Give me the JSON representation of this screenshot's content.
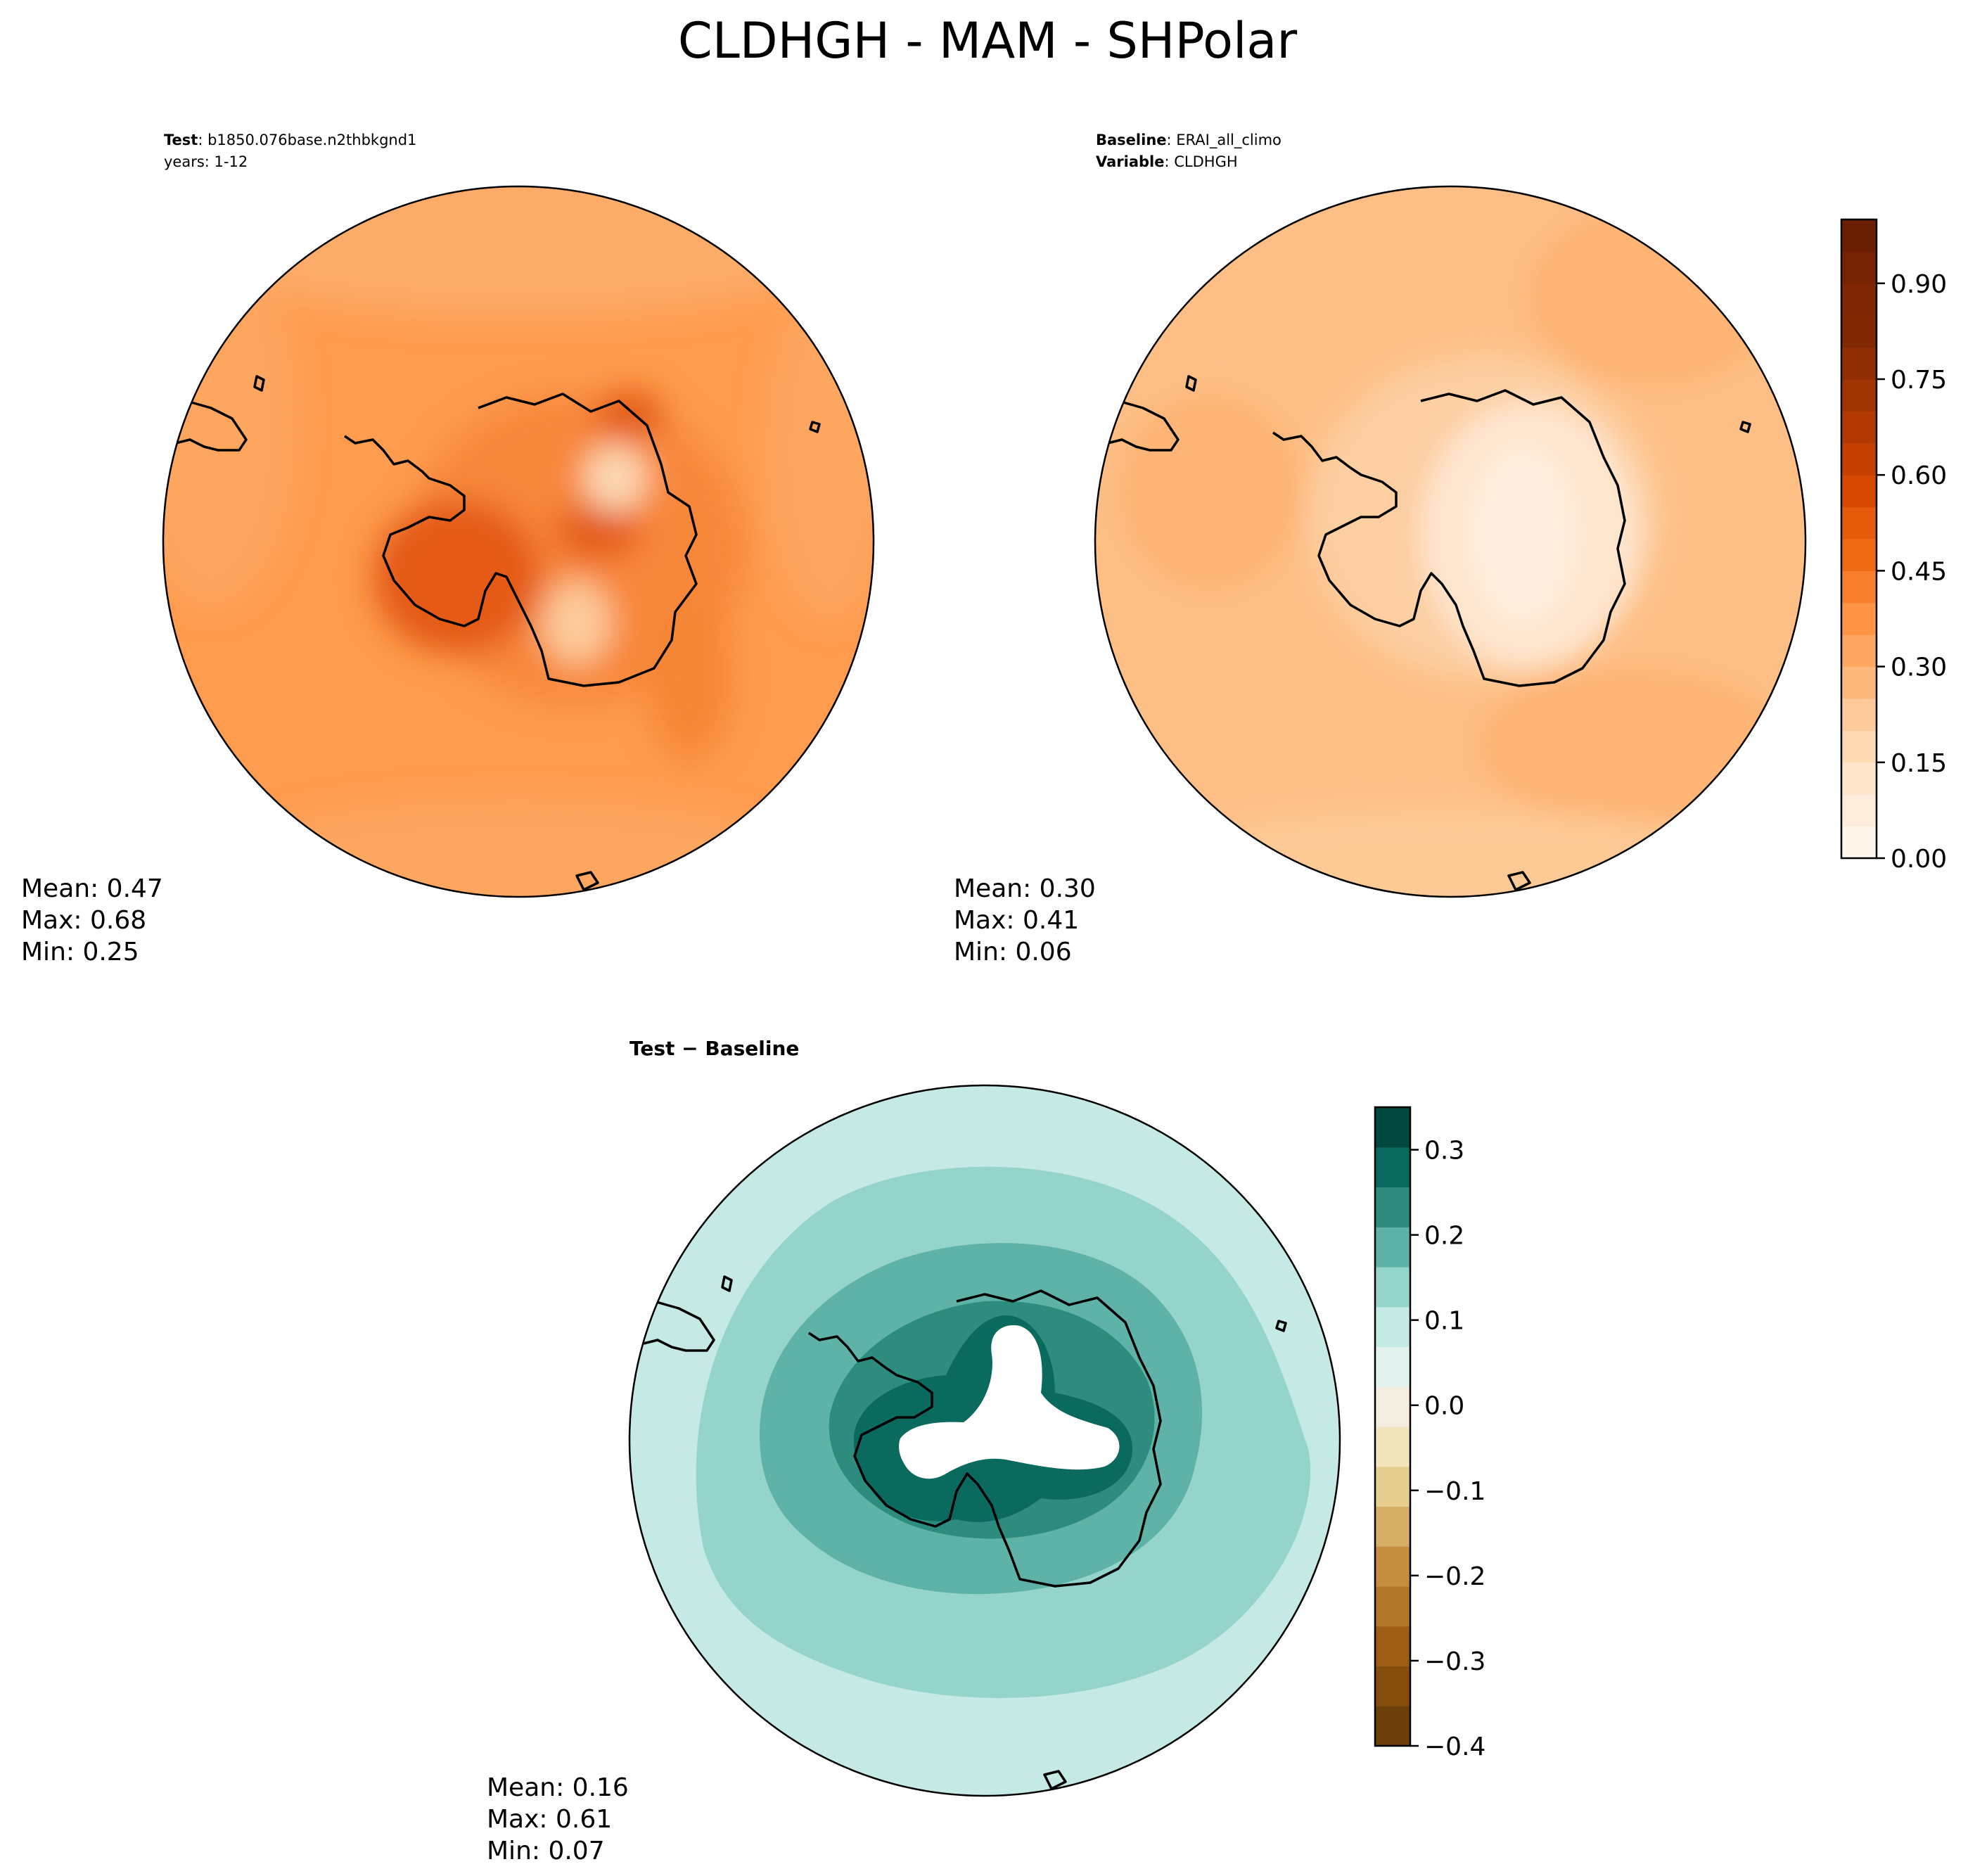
{
  "figure": {
    "title": "CLDHGH - MAM - SHPolar"
  },
  "chart_data": [
    {
      "type": "heatmap",
      "panel": "test",
      "projection": "south polar stereographic",
      "info_lines": [
        {
          "key": "Test",
          "value": "b1850.076base.n2thbkgnd1"
        },
        {
          "key": "",
          "value": "years: 1-12"
        }
      ],
      "stats": {
        "mean": "Mean:  0.47",
        "max": "Max:  0.68",
        "min": "Min:  0.25"
      },
      "value_range": [
        0.25,
        0.68
      ],
      "colorbar": "shared-orange"
    },
    {
      "type": "heatmap",
      "panel": "baseline",
      "projection": "south polar stereographic",
      "info_lines": [
        {
          "key": "Baseline",
          "value": "ERAI_all_climo"
        },
        {
          "key": "Variable",
          "value": "CLDHGH"
        }
      ],
      "stats": {
        "mean": "Mean:  0.30",
        "max": "Max:  0.41",
        "min": "Min:  0.06"
      },
      "value_range": [
        0.06,
        0.41
      ],
      "colorbar": {
        "range": [
          0.0,
          1.0
        ],
        "levels": 20,
        "ticks": [
          0.0,
          0.15,
          0.3,
          0.45,
          0.6,
          0.75,
          0.9
        ],
        "tick_labels": [
          "0.00",
          "0.15",
          "0.30",
          "0.45",
          "0.60",
          "0.75",
          "0.90"
        ],
        "colors": [
          "#fff5eb",
          "#feeddc",
          "#fee5cb",
          "#fdd9b4",
          "#fdcb9b",
          "#fdb97d",
          "#fda762",
          "#fd9446",
          "#f87f2c",
          "#f06913",
          "#e65a0b",
          "#d94801",
          "#c44102",
          "#b23a02",
          "#a13403",
          "#8f2d04",
          "#822904",
          "#7f2704",
          "#752303",
          "#6b1f02"
        ]
      }
    },
    {
      "type": "heatmap",
      "panel": "difference",
      "projection": "south polar stereographic",
      "title": "Test − Baseline",
      "stats": {
        "mean": "Mean:  0.16",
        "max": "Max:  0.61",
        "min": "Min:  0.07"
      },
      "value_range": [
        0.07,
        0.61
      ],
      "colorbar": {
        "range": [
          -0.4,
          0.35
        ],
        "levels": 15,
        "ticks": [
          -0.4,
          -0.3,
          -0.2,
          -0.1,
          0.0,
          0.1,
          0.2,
          0.3
        ],
        "tick_labels": [
          "−0.4",
          "−0.3",
          "−0.2",
          "−0.1",
          "0.0",
          "0.1",
          "0.2",
          "0.3"
        ],
        "colors": [
          "#6b3d08",
          "#844d0b",
          "#9b5e14",
          "#b3772a",
          "#c58e3f",
          "#d6ae63",
          "#e5cc8f",
          "#f2e4bb",
          "#f3eedf",
          "#e3f2ef",
          "#c5e9e4",
          "#94d4ca",
          "#5fb2a7",
          "#2e8c7f",
          "#0a6a5d",
          "#01493f"
        ]
      }
    }
  ]
}
